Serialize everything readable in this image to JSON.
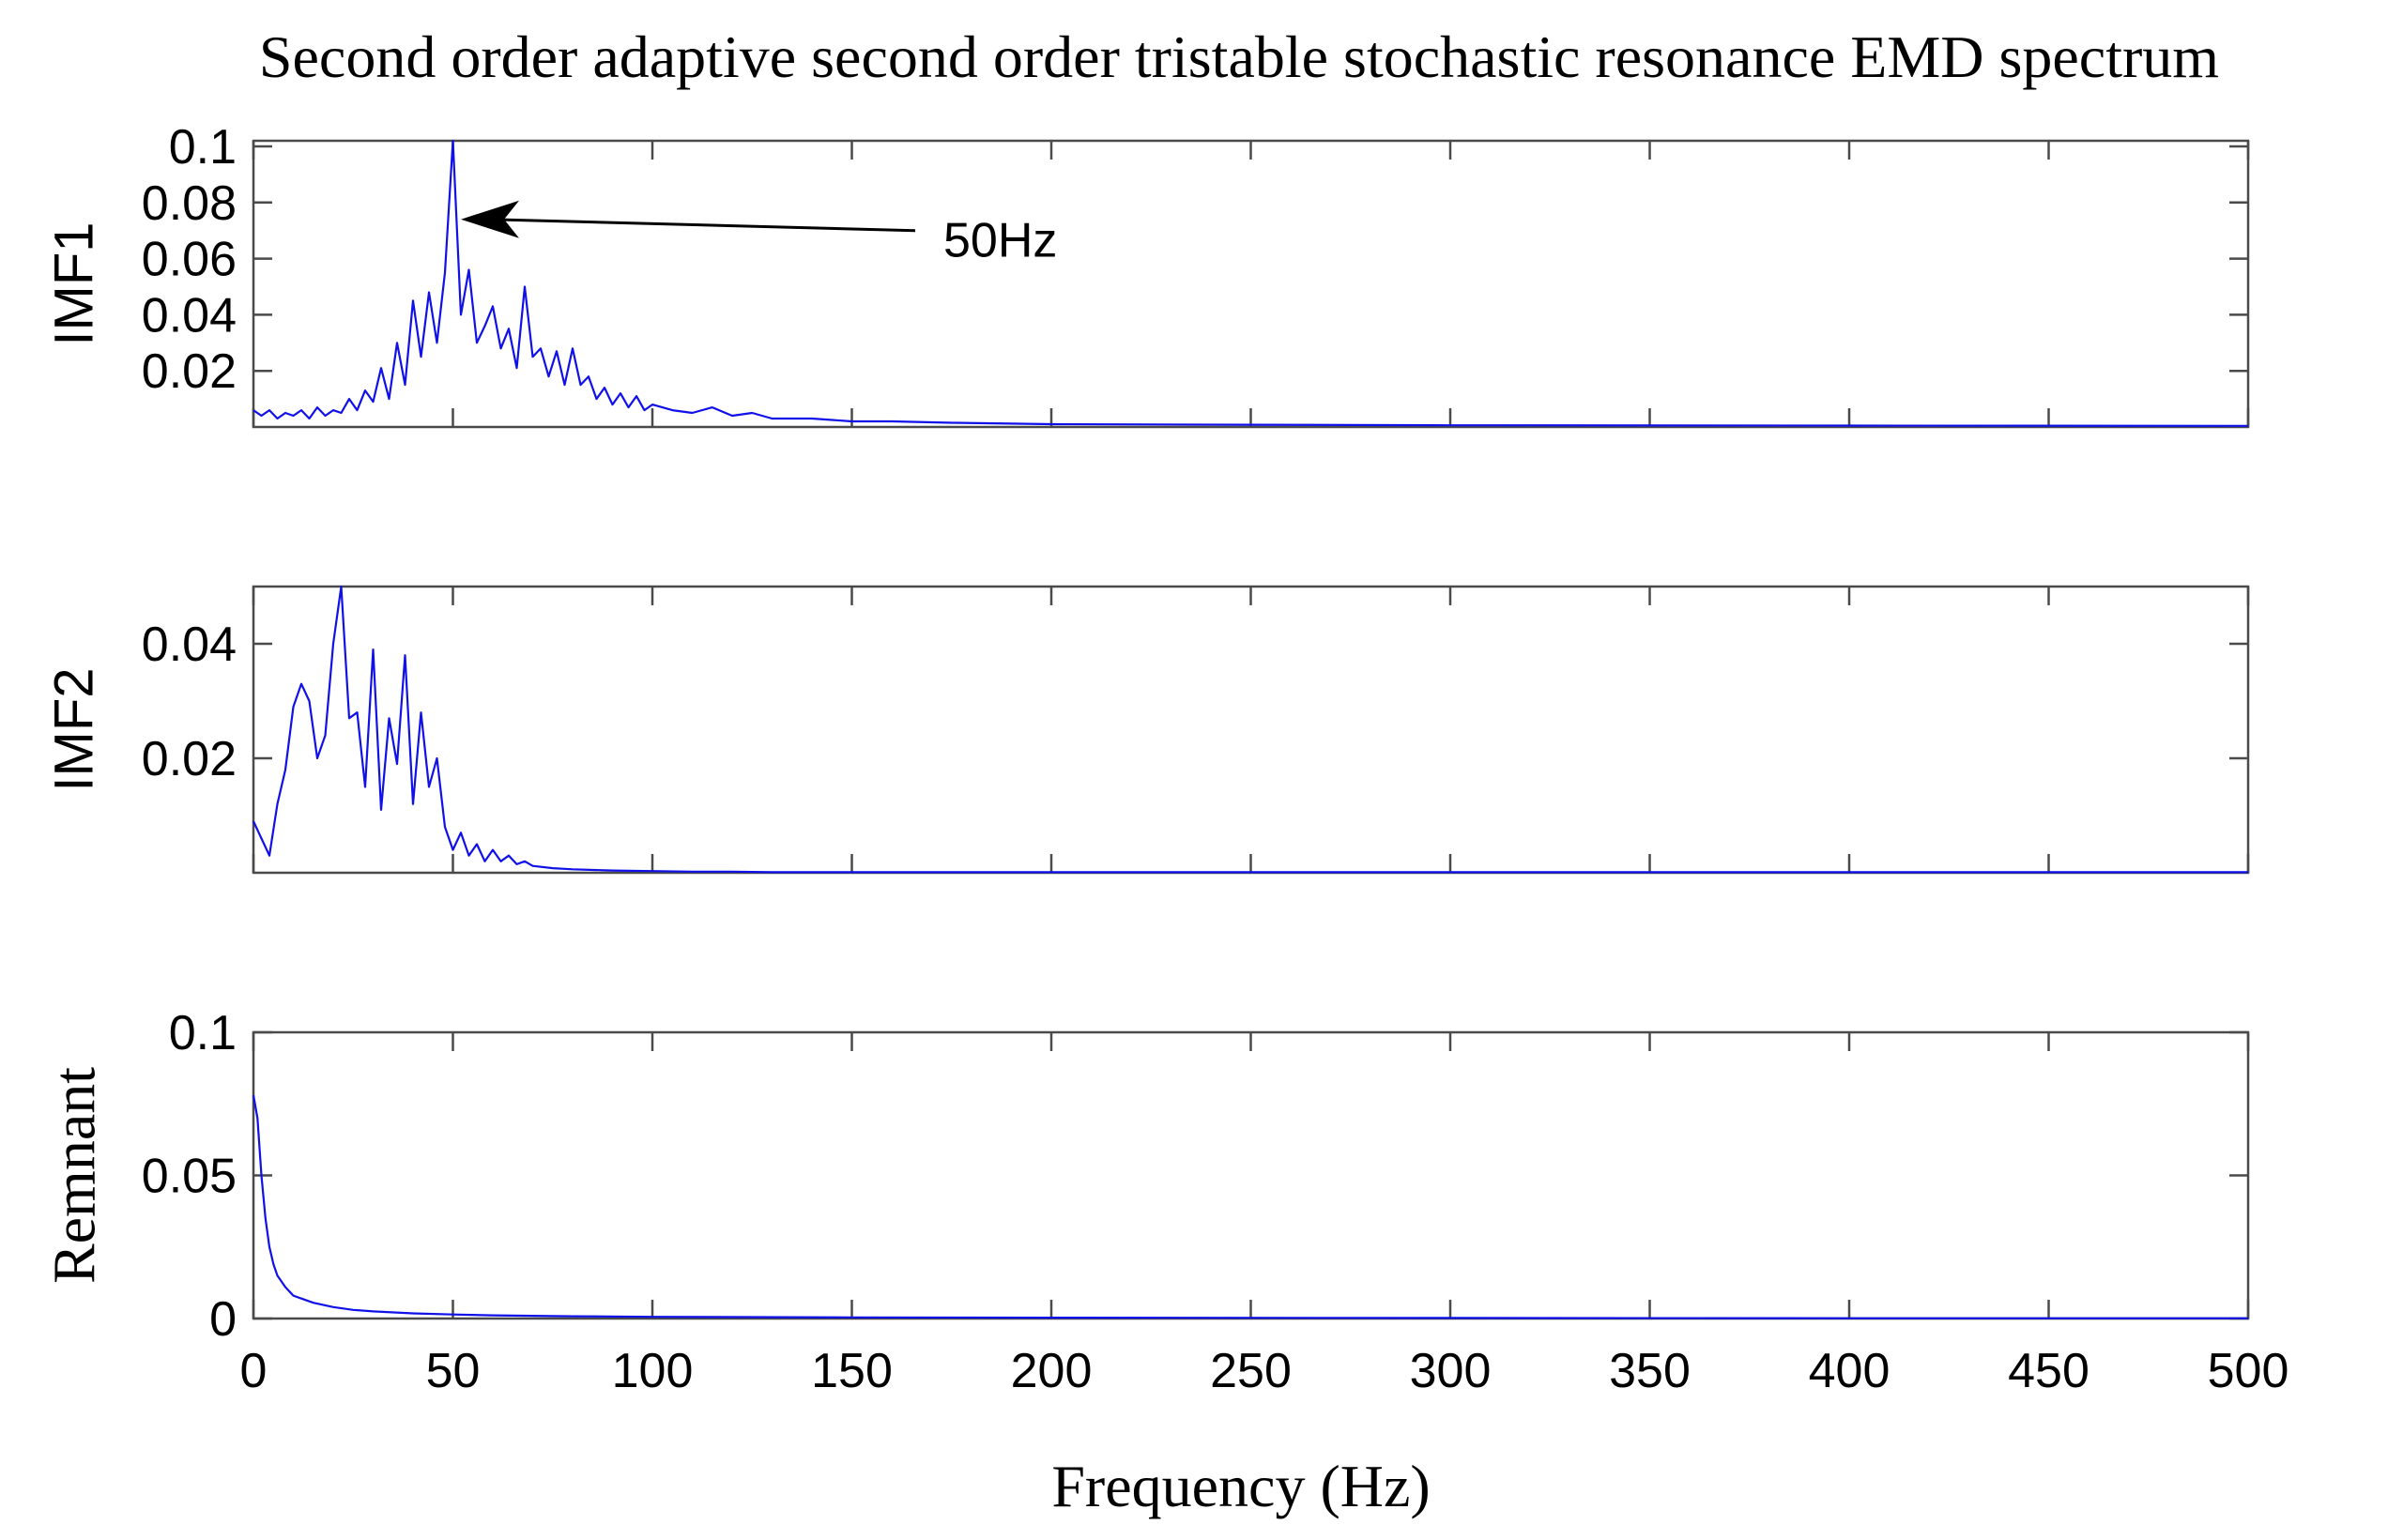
{
  "chart_data": {
    "title": "Second order adaptive second order tristable stochastic resonance EMD spectrum",
    "xlabel": "Frequency (Hz)",
    "xlim": [
      0,
      500
    ],
    "xticks": [
      0,
      50,
      100,
      150,
      200,
      250,
      300,
      350,
      400,
      450,
      500
    ],
    "xtick_labels": [
      "0",
      "50",
      "100",
      "150",
      "200",
      "250",
      "300",
      "350",
      "400",
      "450",
      "500"
    ],
    "line_color": "#1010e8",
    "panels": [
      {
        "id": "imf1",
        "type": "line",
        "ylabel": "IMF1",
        "ylim": [
          0,
          0.102
        ],
        "yticks": [
          0.02,
          0.04,
          0.06,
          0.08,
          0.1
        ],
        "ytick_labels": [
          "0.02",
          "0.04",
          "0.06",
          "0.08",
          "0.1"
        ],
        "annotation": {
          "text": "50Hz",
          "points_to": [
            52,
            0.074
          ]
        },
        "x": [
          0,
          2,
          4,
          6,
          8,
          10,
          12,
          14,
          16,
          18,
          20,
          22,
          24,
          26,
          28,
          30,
          32,
          34,
          36,
          38,
          40,
          42,
          44,
          46,
          48,
          50,
          52,
          54,
          56,
          58,
          60,
          62,
          64,
          66,
          68,
          70,
          72,
          74,
          76,
          78,
          80,
          82,
          84,
          86,
          88,
          90,
          92,
          94,
          96,
          98,
          100,
          105,
          110,
          115,
          120,
          125,
          130,
          140,
          150,
          160,
          175,
          200,
          250,
          300,
          400,
          500
        ],
        "y": [
          0.006,
          0.004,
          0.006,
          0.003,
          0.005,
          0.004,
          0.006,
          0.003,
          0.007,
          0.004,
          0.006,
          0.005,
          0.01,
          0.006,
          0.013,
          0.009,
          0.021,
          0.01,
          0.03,
          0.015,
          0.045,
          0.025,
          0.048,
          0.03,
          0.055,
          0.103,
          0.04,
          0.056,
          0.03,
          0.036,
          0.043,
          0.028,
          0.035,
          0.021,
          0.05,
          0.025,
          0.028,
          0.018,
          0.027,
          0.015,
          0.028,
          0.015,
          0.018,
          0.01,
          0.014,
          0.008,
          0.012,
          0.007,
          0.011,
          0.006,
          0.008,
          0.006,
          0.005,
          0.007,
          0.004,
          0.005,
          0.003,
          0.003,
          0.002,
          0.002,
          0.0015,
          0.001,
          0.0008,
          0.0006,
          0.0005,
          0.0004
        ]
      },
      {
        "id": "imf2",
        "type": "line",
        "ylabel": "IMF2",
        "ylim": [
          0,
          0.05
        ],
        "yticks": [
          0.02,
          0.04
        ],
        "ytick_labels": [
          "0.02",
          "0.04"
        ],
        "x": [
          0,
          2,
          4,
          6,
          8,
          10,
          12,
          14,
          16,
          18,
          20,
          22,
          24,
          26,
          28,
          30,
          32,
          34,
          36,
          38,
          40,
          42,
          44,
          46,
          48,
          50,
          52,
          54,
          56,
          58,
          60,
          62,
          64,
          66,
          68,
          70,
          75,
          80,
          90,
          100,
          110,
          120,
          130,
          150,
          200,
          300,
          400,
          500
        ],
        "y": [
          0.009,
          0.006,
          0.003,
          0.012,
          0.018,
          0.029,
          0.033,
          0.03,
          0.02,
          0.024,
          0.04,
          0.05,
          0.027,
          0.028,
          0.015,
          0.039,
          0.011,
          0.027,
          0.019,
          0.038,
          0.012,
          0.028,
          0.015,
          0.02,
          0.008,
          0.004,
          0.007,
          0.003,
          0.005,
          0.002,
          0.004,
          0.002,
          0.003,
          0.0015,
          0.002,
          0.0012,
          0.0008,
          0.0006,
          0.0004,
          0.0003,
          0.0002,
          0.0002,
          0.0001,
          0.0001,
          0.0001,
          0.0001,
          0.0001,
          0.0001
        ]
      },
      {
        "id": "remnant",
        "type": "line",
        "ylabel": "Remnant",
        "ylim": [
          0,
          0.1
        ],
        "yticks": [
          0,
          0.05,
          0.1
        ],
        "ytick_labels": [
          "0",
          "0.05",
          "0.1"
        ],
        "x": [
          0,
          1,
          2,
          3,
          4,
          5,
          6,
          8,
          10,
          12,
          15,
          20,
          25,
          30,
          40,
          50,
          60,
          80,
          100,
          150,
          200,
          300,
          400,
          500
        ],
        "y": [
          0.078,
          0.07,
          0.05,
          0.035,
          0.025,
          0.019,
          0.015,
          0.011,
          0.008,
          0.007,
          0.0055,
          0.004,
          0.003,
          0.0025,
          0.0018,
          0.0014,
          0.0011,
          0.0008,
          0.0006,
          0.0004,
          0.0003,
          0.0002,
          0.0001,
          0.0001
        ]
      }
    ]
  }
}
